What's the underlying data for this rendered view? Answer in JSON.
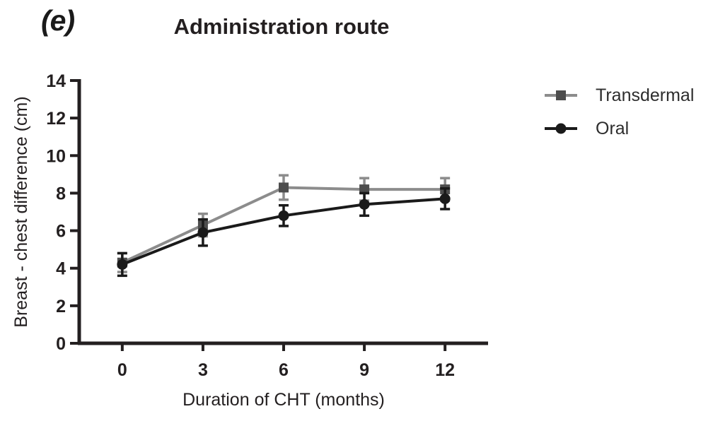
{
  "figure": {
    "panel_label": "(e)",
    "background_color": "#ffffff",
    "axis_color": "#231f20",
    "text_color": "#231f20"
  },
  "chart_data": {
    "type": "line",
    "panel_label": "(e)",
    "title": "Administration route",
    "xlabel": "Duration of CHT (months)",
    "ylabel": "Breast - chest difference (cm)",
    "x": [
      0,
      3,
      6,
      9,
      12
    ],
    "xticks": [
      0,
      3,
      6,
      9,
      12
    ],
    "yticks": [
      0,
      2,
      4,
      6,
      8,
      10,
      12,
      14
    ],
    "xlim": [
      -1.6,
      13.6
    ],
    "ylim": [
      0,
      14
    ],
    "grid": false,
    "legend_position": "right",
    "error_bars": true,
    "series": [
      {
        "name": "Transdermal",
        "marker": "square",
        "line_color": "#8c8c8c",
        "marker_color": "#4d4d4d",
        "values": [
          4.3,
          6.3,
          8.3,
          8.2,
          8.2
        ],
        "errors": [
          0.5,
          0.6,
          0.65,
          0.6,
          0.6
        ]
      },
      {
        "name": "Oral",
        "marker": "circle",
        "line_color": "#1a1a1a",
        "marker_color": "#1a1a1a",
        "values": [
          4.2,
          5.9,
          6.8,
          7.4,
          7.7
        ],
        "errors": [
          0.6,
          0.7,
          0.55,
          0.6,
          0.55
        ]
      }
    ]
  }
}
